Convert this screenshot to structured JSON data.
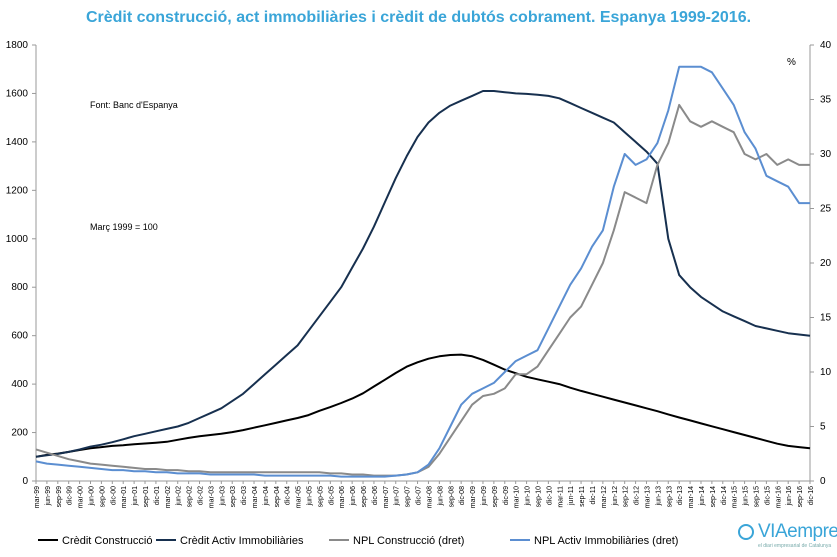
{
  "title": "Crèdit construcció, act immobiliàries i crèdit de dubtós cobrament. Espanya 1999-2016.",
  "logo": {
    "brand_light": "VIA",
    "brand_bold": "empresa",
    "tagline": "el diari empresarial de Catalunya"
  },
  "chart_data": {
    "type": "line",
    "title": "Crèdit construcció, act immobiliàries i crèdit de dubtós cobrament. Espanya 1999-2016.",
    "annotations": [
      "Font: Banc d'Espanya",
      "Març 1999 = 100"
    ],
    "right_axis_unit": "%",
    "ylim_left": [
      0,
      1800
    ],
    "ylim_right": [
      0,
      40
    ],
    "yticks_left": [
      0,
      200,
      400,
      600,
      800,
      1000,
      1200,
      1400,
      1600,
      1800
    ],
    "yticks_right": [
      0,
      5,
      10,
      15,
      20,
      25,
      30,
      35,
      40
    ],
    "grid": false,
    "legend_position": "bottom",
    "colors": {
      "title": "#3aa5d8",
      "axis": "#999999"
    },
    "x": [
      "mar-99",
      "jun-99",
      "sep-99",
      "dic-99",
      "mar-00",
      "jun-00",
      "sep-00",
      "dic-00",
      "mar-01",
      "jun-01",
      "sep-01",
      "dic-01",
      "mar-02",
      "jun-02",
      "sep-02",
      "dic-02",
      "mar-03",
      "jun-03",
      "sep-03",
      "dic-03",
      "mar-04",
      "jun-04",
      "sep-04",
      "dic-04",
      "mar-05",
      "jun-05",
      "sep-05",
      "dic-05",
      "mar-06",
      "jun-06",
      "sep-06",
      "dic-06",
      "mar-07",
      "jun-07",
      "sep-07",
      "dic-07",
      "mar-08",
      "jun-08",
      "sep-08",
      "dic-08",
      "mar-09",
      "jun-09",
      "sep-09",
      "dic-09",
      "mar-10",
      "jun-10",
      "sep-10",
      "dic-10",
      "mar-11",
      "jun-11",
      "sep-11",
      "dic-11",
      "mar-12",
      "jun-12",
      "sep-12",
      "dic-12",
      "mar-13",
      "jun-13",
      "sep-13",
      "dic-13",
      "mar-14",
      "jun-14",
      "sep-14",
      "dic-14",
      "mar-15",
      "jun-15",
      "sep-15",
      "dic-15",
      "mar-16",
      "jun-16",
      "sep-16",
      "dic-16"
    ],
    "series": [
      {
        "name": "Crèdit Construcció",
        "axis": "left",
        "color": "#000000",
        "values": [
          100,
          108,
          113,
          120,
          128,
          135,
          140,
          145,
          148,
          152,
          155,
          158,
          162,
          170,
          178,
          185,
          190,
          195,
          202,
          210,
          220,
          230,
          240,
          250,
          260,
          272,
          290,
          305,
          322,
          340,
          362,
          390,
          418,
          446,
          472,
          490,
          505,
          515,
          520,
          522,
          515,
          500,
          480,
          460,
          445,
          430,
          420,
          410,
          400,
          385,
          372,
          360,
          348,
          336,
          324,
          312,
          300,
          288,
          275,
          262,
          250,
          238,
          226,
          214,
          202,
          190,
          178,
          166,
          154,
          145,
          140,
          135
        ]
      },
      {
        "name": "Crèdit Activ Immobiliàries",
        "axis": "left",
        "color": "#17304f",
        "values": [
          100,
          106,
          112,
          120,
          130,
          142,
          150,
          160,
          172,
          185,
          195,
          205,
          215,
          225,
          240,
          260,
          280,
          300,
          330,
          360,
          400,
          440,
          480,
          520,
          560,
          620,
          680,
          740,
          800,
          880,
          960,
          1050,
          1150,
          1250,
          1340,
          1420,
          1480,
          1520,
          1550,
          1570,
          1590,
          1610,
          1610,
          1605,
          1600,
          1598,
          1595,
          1590,
          1580,
          1560,
          1540,
          1520,
          1500,
          1480,
          1440,
          1400,
          1360,
          1310,
          1000,
          850,
          800,
          760,
          730,
          700,
          680,
          660,
          640,
          630,
          620,
          610,
          605,
          600
        ]
      },
      {
        "name": "NPL Construcció (dret)",
        "axis": "right",
        "color": "#8a8a8a",
        "values": [
          2.9,
          2.6,
          2.3,
          2.0,
          1.8,
          1.6,
          1.5,
          1.4,
          1.3,
          1.2,
          1.1,
          1.1,
          1.0,
          1.0,
          0.9,
          0.9,
          0.8,
          0.8,
          0.8,
          0.8,
          0.8,
          0.8,
          0.8,
          0.8,
          0.8,
          0.8,
          0.8,
          0.7,
          0.7,
          0.6,
          0.6,
          0.5,
          0.5,
          0.5,
          0.6,
          0.8,
          1.3,
          2.5,
          4.0,
          5.5,
          7.0,
          7.8,
          8.0,
          8.5,
          9.8,
          9.8,
          10.5,
          12.0,
          13.5,
          15.0,
          16.0,
          18.0,
          20.0,
          23.0,
          26.5,
          26.0,
          25.5,
          29.0,
          31.0,
          34.5,
          33.0,
          32.5,
          33.0,
          32.5,
          32.0,
          30.0,
          29.5,
          30.0,
          29.0,
          29.5,
          29.0,
          29.0
        ]
      },
      {
        "name": "NPL Activ Immobiliàries (dret)",
        "axis": "right",
        "color": "#5b8ed1",
        "values": [
          1.8,
          1.6,
          1.5,
          1.4,
          1.3,
          1.2,
          1.1,
          1.0,
          1.0,
          0.9,
          0.9,
          0.8,
          0.8,
          0.7,
          0.7,
          0.7,
          0.6,
          0.6,
          0.6,
          0.6,
          0.6,
          0.5,
          0.5,
          0.5,
          0.5,
          0.5,
          0.5,
          0.5,
          0.4,
          0.4,
          0.4,
          0.4,
          0.4,
          0.5,
          0.6,
          0.8,
          1.5,
          3.0,
          5.0,
          7.0,
          8.0,
          8.5,
          9.0,
          10.0,
          11.0,
          11.5,
          12.0,
          14.0,
          16.0,
          18.0,
          19.5,
          21.5,
          23.0,
          27.0,
          30.0,
          29.0,
          29.5,
          31.0,
          34.0,
          38.0,
          38.0,
          38.0,
          37.5,
          36.0,
          34.5,
          32.0,
          30.5,
          28.0,
          27.5,
          27.0,
          25.5,
          25.5
        ]
      }
    ]
  }
}
